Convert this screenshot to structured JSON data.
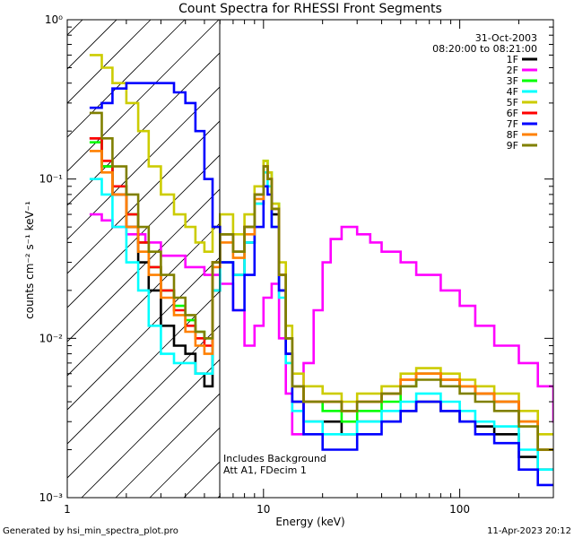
{
  "chart_data": {
    "type": "line",
    "title": "Count Spectra for RHESSI Front Segments",
    "xlabel": "Energy (keV)",
    "ylabel": "counts cm⁻² s⁻¹ keV⁻¹",
    "xscale": "log",
    "yscale": "log",
    "xlim": [
      1,
      300
    ],
    "ylim": [
      0.001,
      1
    ],
    "xticks": [
      {
        "value": 1,
        "label": "1"
      },
      {
        "value": 10,
        "label": "10"
      },
      {
        "value": 100,
        "label": "100"
      }
    ],
    "yticks": [
      {
        "value": 1,
        "label": "10⁰"
      },
      {
        "value": 0.1,
        "label": "10⁻¹"
      },
      {
        "value": 0.01,
        "label": "10⁻²"
      },
      {
        "value": 0.001,
        "label": "10⁻³"
      }
    ],
    "shaded_region": {
      "x_from": 1,
      "x_to": 6,
      "pattern": "diagonal-hatch"
    },
    "legend_position": "top-right",
    "legend_header": [
      "31-Oct-2003",
      "08:20:00 to 08:21:00"
    ],
    "annotations": [
      "Includes Background",
      "Att A1, FDecim 1"
    ],
    "series": [
      {
        "name": "1F",
        "color": "#000000",
        "x": [
          1.3,
          1.5,
          1.7,
          2.0,
          2.3,
          2.6,
          3.0,
          3.5,
          4.0,
          4.5,
          5.0,
          5.5,
          6.0,
          7.0,
          8.0,
          9.0,
          10.0,
          10.5,
          11.0,
          12.0,
          13.0,
          14.0,
          16.0,
          20.0,
          25.0,
          30.0,
          40.0,
          50.0,
          60.0,
          80.0,
          100.0,
          120.0,
          150.0,
          200.0,
          250.0
        ],
        "y": [
          0.18,
          0.12,
          0.08,
          0.05,
          0.03,
          0.02,
          0.012,
          0.009,
          0.008,
          0.006,
          0.005,
          0.02,
          0.03,
          0.025,
          0.04,
          0.07,
          0.12,
          0.1,
          0.06,
          0.02,
          0.008,
          0.004,
          0.003,
          0.003,
          0.0025,
          0.003,
          0.003,
          0.0035,
          0.004,
          0.0035,
          0.003,
          0.0028,
          0.0025,
          0.0018,
          0.0015
        ]
      },
      {
        "name": "2F",
        "color": "#ff00ff",
        "x": [
          1.3,
          1.5,
          1.7,
          2.0,
          2.5,
          3.0,
          4.0,
          5.0,
          6.0,
          7.0,
          8.0,
          9.0,
          10.0,
          11.0,
          12.0,
          13.0,
          14.0,
          16.0,
          18.0,
          20.0,
          22.0,
          25.0,
          30.0,
          35.0,
          40.0,
          50.0,
          60.0,
          80.0,
          100.0,
          120.0,
          150.0,
          200.0,
          250.0,
          300.0
        ],
        "y": [
          0.06,
          0.055,
          0.05,
          0.045,
          0.04,
          0.033,
          0.028,
          0.025,
          0.022,
          0.015,
          0.009,
          0.012,
          0.018,
          0.022,
          0.01,
          0.0045,
          0.0025,
          0.007,
          0.015,
          0.03,
          0.042,
          0.05,
          0.045,
          0.04,
          0.035,
          0.03,
          0.025,
          0.02,
          0.016,
          0.012,
          0.009,
          0.007,
          0.005,
          0.003
        ]
      },
      {
        "name": "3F",
        "color": "#00ff00",
        "x": [
          1.3,
          1.5,
          1.7,
          2.0,
          2.3,
          2.6,
          3.0,
          3.5,
          4.0,
          4.5,
          5.0,
          5.5,
          6.0,
          7.0,
          8.0,
          9.0,
          10.0,
          10.5,
          11.0,
          12.0,
          13.0,
          14.0,
          16.0,
          20.0,
          25.0,
          30.0,
          40.0,
          50.0,
          60.0,
          80.0,
          100.0,
          120.0,
          150.0,
          200.0,
          250.0
        ],
        "y": [
          0.17,
          0.12,
          0.09,
          0.06,
          0.04,
          0.028,
          0.02,
          0.016,
          0.013,
          0.011,
          0.01,
          0.03,
          0.045,
          0.035,
          0.05,
          0.08,
          0.13,
          0.11,
          0.07,
          0.025,
          0.01,
          0.005,
          0.004,
          0.0035,
          0.003,
          0.0035,
          0.004,
          0.005,
          0.006,
          0.0055,
          0.005,
          0.0045,
          0.004,
          0.003,
          0.002
        ]
      },
      {
        "name": "4F",
        "color": "#00ffff",
        "x": [
          1.3,
          1.5,
          1.7,
          2.0,
          2.3,
          2.6,
          3.0,
          3.5,
          4.0,
          4.5,
          5.0,
          5.5,
          6.0,
          7.0,
          8.0,
          9.0,
          10.0,
          10.5,
          11.0,
          12.0,
          13.0,
          14.0,
          16.0,
          20.0,
          25.0,
          30.0,
          40.0,
          50.0,
          60.0,
          80.0,
          100.0,
          120.0,
          150.0,
          200.0,
          250.0
        ],
        "y": [
          0.1,
          0.08,
          0.05,
          0.03,
          0.02,
          0.012,
          0.008,
          0.007,
          0.007,
          0.006,
          0.006,
          0.02,
          0.03,
          0.025,
          0.04,
          0.07,
          0.11,
          0.09,
          0.05,
          0.018,
          0.007,
          0.0035,
          0.003,
          0.0025,
          0.0025,
          0.003,
          0.0035,
          0.004,
          0.0045,
          0.004,
          0.0035,
          0.003,
          0.0028,
          0.002,
          0.0015
        ]
      },
      {
        "name": "5F",
        "color": "#cccc00",
        "x": [
          1.3,
          1.5,
          1.7,
          2.0,
          2.3,
          2.6,
          3.0,
          3.5,
          4.0,
          4.5,
          5.0,
          5.5,
          6.0,
          7.0,
          8.0,
          9.0,
          10.0,
          10.5,
          11.0,
          12.0,
          13.0,
          14.0,
          16.0,
          20.0,
          25.0,
          30.0,
          40.0,
          50.0,
          60.0,
          80.0,
          100.0,
          120.0,
          150.0,
          200.0,
          250.0
        ],
        "y": [
          0.6,
          0.5,
          0.4,
          0.3,
          0.2,
          0.12,
          0.08,
          0.06,
          0.05,
          0.04,
          0.035,
          0.05,
          0.06,
          0.045,
          0.06,
          0.09,
          0.13,
          0.11,
          0.07,
          0.03,
          0.012,
          0.006,
          0.005,
          0.0045,
          0.004,
          0.0045,
          0.005,
          0.006,
          0.0065,
          0.006,
          0.0055,
          0.005,
          0.0045,
          0.0035,
          0.0025
        ]
      },
      {
        "name": "6F",
        "color": "#ff0000",
        "x": [
          1.3,
          1.5,
          1.7,
          2.0,
          2.3,
          2.6,
          3.0,
          3.5,
          4.0,
          4.5,
          5.0,
          5.5,
          6.0,
          7.0,
          8.0,
          9.0,
          10.0,
          10.5,
          11.0,
          12.0,
          13.0,
          14.0,
          16.0,
          20.0,
          25.0,
          30.0,
          40.0,
          50.0,
          60.0,
          80.0,
          100.0,
          120.0,
          150.0,
          200.0,
          250.0
        ],
        "y": [
          0.18,
          0.13,
          0.09,
          0.06,
          0.04,
          0.028,
          0.02,
          0.015,
          0.012,
          0.01,
          0.009,
          0.03,
          0.045,
          0.035,
          0.05,
          0.08,
          0.12,
          0.1,
          0.065,
          0.025,
          0.01,
          0.005,
          0.004,
          0.004,
          0.0035,
          0.004,
          0.0045,
          0.0055,
          0.006,
          0.0055,
          0.005,
          0.0045,
          0.004,
          0.003,
          0.002
        ]
      },
      {
        "name": "7F",
        "color": "#0000ff",
        "x": [
          1.3,
          1.5,
          1.7,
          2.0,
          2.5,
          3.0,
          3.5,
          4.0,
          4.5,
          5.0,
          5.5,
          6.0,
          7.0,
          8.0,
          9.0,
          10.0,
          10.5,
          11.0,
          12.0,
          13.0,
          14.0,
          16.0,
          20.0,
          25.0,
          30.0,
          40.0,
          50.0,
          60.0,
          80.0,
          100.0,
          120.0,
          150.0,
          200.0,
          250.0
        ],
        "y": [
          0.28,
          0.3,
          0.37,
          0.4,
          0.4,
          0.4,
          0.35,
          0.3,
          0.2,
          0.1,
          0.05,
          0.03,
          0.015,
          0.025,
          0.05,
          0.09,
          0.08,
          0.05,
          0.02,
          0.008,
          0.004,
          0.0025,
          0.002,
          0.002,
          0.0025,
          0.003,
          0.0035,
          0.004,
          0.0035,
          0.003,
          0.0025,
          0.0022,
          0.0015,
          0.0012
        ]
      },
      {
        "name": "8F",
        "color": "#ff8000",
        "x": [
          1.3,
          1.5,
          1.7,
          2.0,
          2.3,
          2.6,
          3.0,
          3.5,
          4.0,
          4.5,
          5.0,
          5.5,
          6.0,
          7.0,
          8.0,
          9.0,
          10.0,
          10.5,
          11.0,
          12.0,
          13.0,
          14.0,
          16.0,
          20.0,
          25.0,
          30.0,
          40.0,
          50.0,
          60.0,
          80.0,
          100.0,
          120.0,
          150.0,
          200.0,
          250.0
        ],
        "y": [
          0.15,
          0.11,
          0.08,
          0.05,
          0.035,
          0.025,
          0.018,
          0.014,
          0.011,
          0.009,
          0.008,
          0.028,
          0.04,
          0.032,
          0.045,
          0.075,
          0.12,
          0.1,
          0.065,
          0.025,
          0.01,
          0.005,
          0.004,
          0.004,
          0.0035,
          0.004,
          0.0045,
          0.0055,
          0.006,
          0.0055,
          0.005,
          0.0045,
          0.004,
          0.003,
          0.002
        ]
      },
      {
        "name": "9F",
        "color": "#808000",
        "x": [
          1.3,
          1.5,
          1.7,
          2.0,
          2.3,
          2.6,
          3.0,
          3.5,
          4.0,
          4.5,
          5.0,
          5.5,
          6.0,
          7.0,
          8.0,
          9.0,
          10.0,
          10.5,
          11.0,
          12.0,
          13.0,
          14.0,
          16.0,
          20.0,
          25.0,
          30.0,
          40.0,
          50.0,
          60.0,
          80.0,
          100.0,
          120.0,
          150.0,
          200.0,
          250.0
        ],
        "y": [
          0.26,
          0.18,
          0.12,
          0.08,
          0.05,
          0.035,
          0.025,
          0.018,
          0.014,
          0.011,
          0.01,
          0.03,
          0.045,
          0.035,
          0.05,
          0.08,
          0.12,
          0.1,
          0.065,
          0.025,
          0.01,
          0.005,
          0.004,
          0.004,
          0.0035,
          0.004,
          0.0045,
          0.005,
          0.0055,
          0.005,
          0.0045,
          0.004,
          0.0035,
          0.0028,
          0.002
        ]
      }
    ]
  },
  "footer": {
    "left": "Generated by hsi_min_spectra_plot.pro",
    "right": "11-Apr-2023 20:12"
  }
}
